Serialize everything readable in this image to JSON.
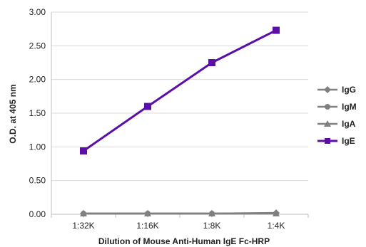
{
  "chart_data": {
    "type": "line",
    "title": "",
    "xlabel": "Dilution of Mouse Anti-Human IgE Fc-HRP",
    "ylabel": "O.D. at 405 nm",
    "categories": [
      "1:32K",
      "1:16K",
      "1:8K",
      "1:4K"
    ],
    "ylim": [
      0,
      3.0
    ],
    "yticks": [
      "0.00",
      "0.50",
      "1.00",
      "1.50",
      "2.00",
      "2.50",
      "3.00"
    ],
    "grid": "horizontal",
    "legend_position": "right",
    "series": [
      {
        "name": "IgG",
        "values": [
          0.01,
          0.01,
          0.01,
          0.02
        ],
        "color": "#808080",
        "marker": "diamond"
      },
      {
        "name": "IgM",
        "values": [
          0.01,
          0.01,
          0.01,
          0.01
        ],
        "color": "#808080",
        "marker": "circle"
      },
      {
        "name": "IgA",
        "values": [
          0.01,
          0.01,
          0.01,
          0.01
        ],
        "color": "#808080",
        "marker": "triangle"
      },
      {
        "name": "IgE",
        "values": [
          0.94,
          1.6,
          2.25,
          2.73
        ],
        "color": "#5b0ea8",
        "marker": "square"
      }
    ]
  }
}
